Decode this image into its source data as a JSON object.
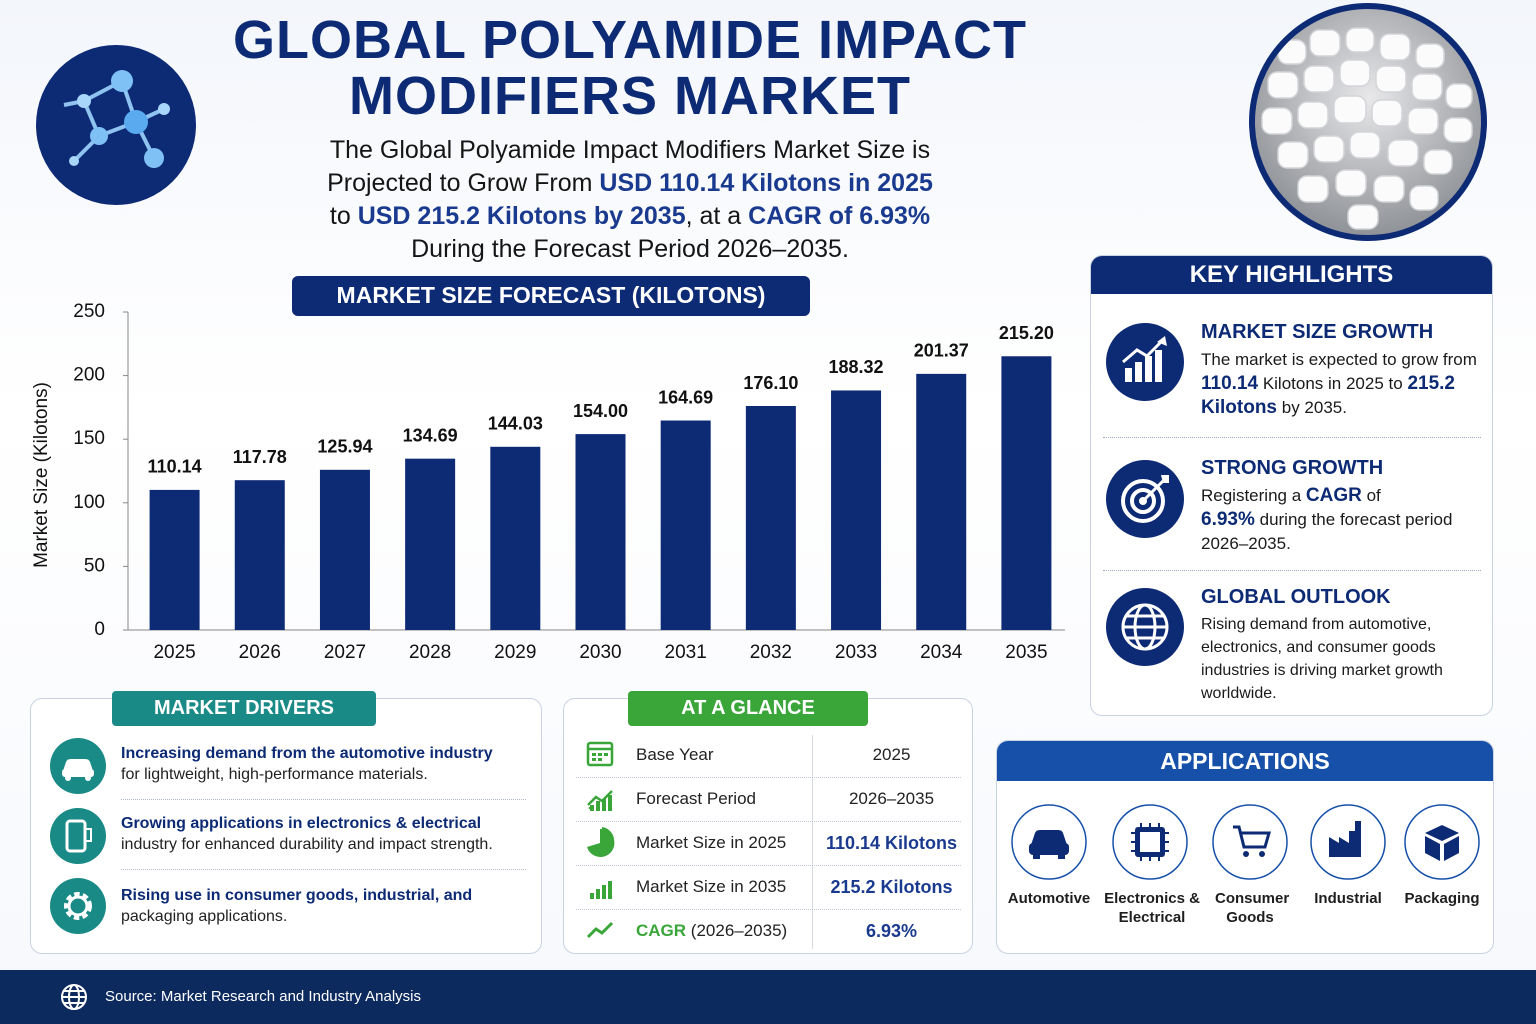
{
  "header": {
    "title": "GLOBAL POLYAMIDE IMPACT MODIFIERS MARKET",
    "subtitle": [
      "The Global Polyamide Impact Modifiers Market Size is",
      "Projected to Grow From",
      "USD 110.14 Kilotons in 2025",
      "to",
      "USD 215.2 Kilotons by 2035",
      ", at a",
      "CAGR of 6.93%",
      "During the Forecast Period 2026–2035."
    ]
  },
  "chart_data": {
    "type": "bar",
    "title": "MARKET SIZE FORECAST (KILOTONS)",
    "y_label": "Market Size (Kilotons)",
    "categories": [
      "2025",
      "2026",
      "2027",
      "2028",
      "2029",
      "2030",
      "2031",
      "2032",
      "2033",
      "2034",
      "2035"
    ],
    "values": [
      110.14,
      117.78,
      125.94,
      134.69,
      144.03,
      154.0,
      164.69,
      176.1,
      188.32,
      201.37,
      215.2
    ],
    "value_labels": [
      "110.14",
      "117.78",
      "125.94",
      "134.69",
      "144.03",
      "154.00",
      "164.69",
      "176.10",
      "188.32",
      "201.37",
      "215.20"
    ],
    "color": "#0d2a75",
    "ylim": [
      0,
      250
    ],
    "yticks": [
      0,
      50,
      100,
      150,
      200,
      250
    ],
    "grid": false
  },
  "key_highlights": {
    "title": "KEY HIGHLIGHTS",
    "items": [
      {
        "heading": "MARKET SIZE GROWTH",
        "text": [
          "The market is expected to grow from",
          "110.14",
          "Kilotons in 2025 to",
          "215.2 Kilotons",
          "by 2035."
        ]
      },
      {
        "heading": "STRONG GROWTH",
        "text": [
          "Registering a",
          "CAGR",
          "of",
          "6.93%",
          "during the forecast period 2026–2035."
        ]
      },
      {
        "heading": "GLOBAL OUTLOOK",
        "text": [
          "Rising demand from automotive, electronics, and consumer goods industries is driving market growth worldwide."
        ]
      }
    ]
  },
  "market_drivers": {
    "title": "MARKET DRIVERS",
    "items": [
      {
        "heading": "Increasing demand from the automotive industry",
        "text": "for lightweight, high-performance materials."
      },
      {
        "heading": "Growing applications in electronics & electrical",
        "text": "industry for enhanced durability and impact strength."
      },
      {
        "heading": "Rising use in consumer goods, industrial, and",
        "text": "packaging applications."
      }
    ]
  },
  "at_a_glance": {
    "title": "AT A GLANCE",
    "rows": [
      {
        "label": "Base Year",
        "value": "2025"
      },
      {
        "label": "Forecast Period",
        "value": "2026–2035"
      },
      {
        "label": "Market Size in 2025",
        "value": "110.14 Kilotons"
      },
      {
        "label": "Market Size in 2035",
        "value": "215.2 Kilotons"
      },
      {
        "label": "CAGR",
        "note": "(2026–2035)",
        "value": "6.93%"
      }
    ]
  },
  "applications": {
    "title": "APPLICATIONS",
    "items": [
      "Automotive",
      "Electronics & Electrical",
      "Consumer Goods",
      "Industrial",
      "Packaging"
    ]
  },
  "footer": {
    "source": "Source: Market Research and Industry Analysis"
  }
}
